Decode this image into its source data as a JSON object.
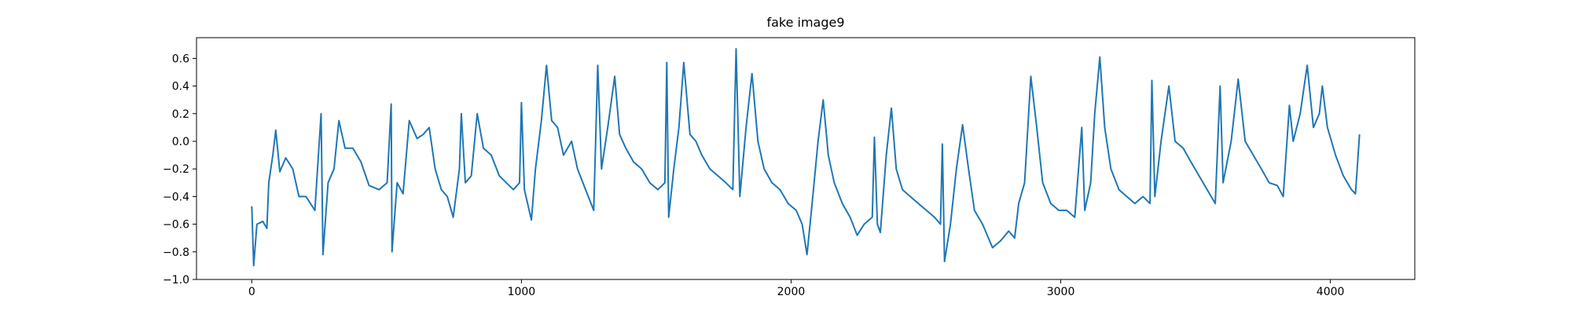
{
  "chart_data": {
    "type": "line",
    "title": "fake image9",
    "color": "#1f77b4",
    "x": [
      0,
      7,
      19,
      41,
      56,
      63,
      78,
      89,
      104,
      126,
      152,
      175,
      201,
      234,
      257,
      264,
      283,
      305,
      323,
      346,
      375,
      405,
      435,
      472,
      502,
      517,
      520,
      539,
      561,
      584,
      613,
      636,
      658,
      680,
      703,
      725,
      747,
      770,
      777,
      792,
      814,
      836,
      859,
      888,
      918,
      944,
      970,
      993,
      1000,
      1011,
      1037,
      1052,
      1074,
      1093,
      1112,
      1134,
      1156,
      1186,
      1208,
      1238,
      1268,
      1283,
      1297,
      1320,
      1346,
      1364,
      1387,
      1416,
      1446,
      1476,
      1506,
      1532,
      1539,
      1546,
      1565,
      1584,
      1602,
      1625,
      1647,
      1669,
      1699,
      1729,
      1758,
      1784,
      1796,
      1810,
      1833,
      1855,
      1877,
      1900,
      1929,
      1959,
      1989,
      2019,
      2041,
      2059,
      2078,
      2100,
      2119,
      2138,
      2160,
      2190,
      2219,
      2245,
      2271,
      2301,
      2309,
      2320,
      2331,
      2353,
      2372,
      2390,
      2413,
      2442,
      2472,
      2502,
      2532,
      2554,
      2561,
      2569,
      2591,
      2613,
      2636,
      2658,
      2680,
      2710,
      2747,
      2777,
      2807,
      2829,
      2844,
      2866,
      2889,
      2911,
      2933,
      2963,
      2993,
      3022,
      3052,
      3078,
      3089,
      3111,
      3126,
      3145,
      3163,
      3186,
      3216,
      3245,
      3275,
      3305,
      3331,
      3338,
      3349,
      3372,
      3401,
      3424,
      3454,
      3483,
      3513,
      3543,
      3573,
      3591,
      3602,
      3632,
      3658,
      3684,
      3714,
      3744,
      3773,
      3803,
      3825,
      3848,
      3862,
      3888,
      3914,
      3937,
      3959,
      3970,
      3989,
      4019,
      4048,
      4078,
      4093,
      4108
    ],
    "values": [
      -0.47,
      -0.9,
      -0.6,
      -0.58,
      -0.63,
      -0.3,
      -0.1,
      0.08,
      -0.22,
      -0.12,
      -0.2,
      -0.4,
      -0.4,
      -0.5,
      0.2,
      -0.82,
      -0.3,
      -0.2,
      0.15,
      -0.05,
      -0.05,
      -0.15,
      -0.32,
      -0.35,
      -0.3,
      0.27,
      -0.8,
      -0.3,
      -0.38,
      0.15,
      0.02,
      0.05,
      0.1,
      -0.2,
      -0.35,
      -0.4,
      -0.55,
      -0.2,
      0.2,
      -0.3,
      -0.25,
      0.2,
      -0.05,
      -0.1,
      -0.25,
      -0.3,
      -0.35,
      -0.3,
      0.28,
      -0.35,
      -0.57,
      -0.2,
      0.15,
      0.55,
      0.15,
      0.1,
      -0.1,
      0.0,
      -0.2,
      -0.35,
      -0.5,
      0.55,
      -0.2,
      0.1,
      0.47,
      0.05,
      -0.05,
      -0.15,
      -0.2,
      -0.3,
      -0.35,
      -0.3,
      0.57,
      -0.55,
      -0.2,
      0.1,
      0.57,
      0.05,
      0.0,
      -0.1,
      -0.2,
      -0.25,
      -0.3,
      -0.35,
      0.67,
      -0.4,
      0.1,
      0.49,
      0.0,
      -0.2,
      -0.3,
      -0.35,
      -0.45,
      -0.5,
      -0.6,
      -0.82,
      -0.45,
      0.0,
      0.3,
      -0.1,
      -0.3,
      -0.45,
      -0.55,
      -0.68,
      -0.6,
      -0.55,
      0.03,
      -0.6,
      -0.66,
      -0.1,
      0.24,
      -0.2,
      -0.35,
      -0.4,
      -0.45,
      -0.5,
      -0.55,
      -0.6,
      -0.02,
      -0.87,
      -0.6,
      -0.2,
      0.12,
      -0.2,
      -0.5,
      -0.6,
      -0.77,
      -0.72,
      -0.65,
      -0.7,
      -0.45,
      -0.3,
      0.47,
      0.1,
      -0.3,
      -0.45,
      -0.5,
      -0.5,
      -0.55,
      0.1,
      -0.5,
      -0.3,
      0.2,
      0.61,
      0.1,
      -0.2,
      -0.35,
      -0.4,
      -0.45,
      -0.4,
      -0.45,
      0.44,
      -0.4,
      0.0,
      0.4,
      0.0,
      -0.05,
      -0.15,
      -0.25,
      -0.35,
      -0.45,
      0.4,
      -0.3,
      0.0,
      0.45,
      0.0,
      -0.1,
      -0.2,
      -0.3,
      -0.32,
      -0.4,
      0.26,
      0.0,
      0.2,
      0.55,
      0.1,
      0.2,
      0.4,
      0.1,
      -0.1,
      -0.25,
      -0.35,
      -0.38,
      0.05
    ],
    "xlim": [
      -205,
      4313
    ],
    "ylim": [
      -1.0,
      0.75
    ],
    "xticks": [
      0,
      1000,
      2000,
      3000,
      4000
    ],
    "yticks": [
      {
        "value": -1.0,
        "label": "−1.0"
      },
      {
        "value": -0.8,
        "label": "−0.8"
      },
      {
        "value": -0.6,
        "label": "−0.6"
      },
      {
        "value": -0.4,
        "label": "−0.4"
      },
      {
        "value": -0.2,
        "label": "−0.2"
      },
      {
        "value": 0.0,
        "label": "0.0"
      },
      0.2,
      0.4,
      0.6
    ]
  }
}
